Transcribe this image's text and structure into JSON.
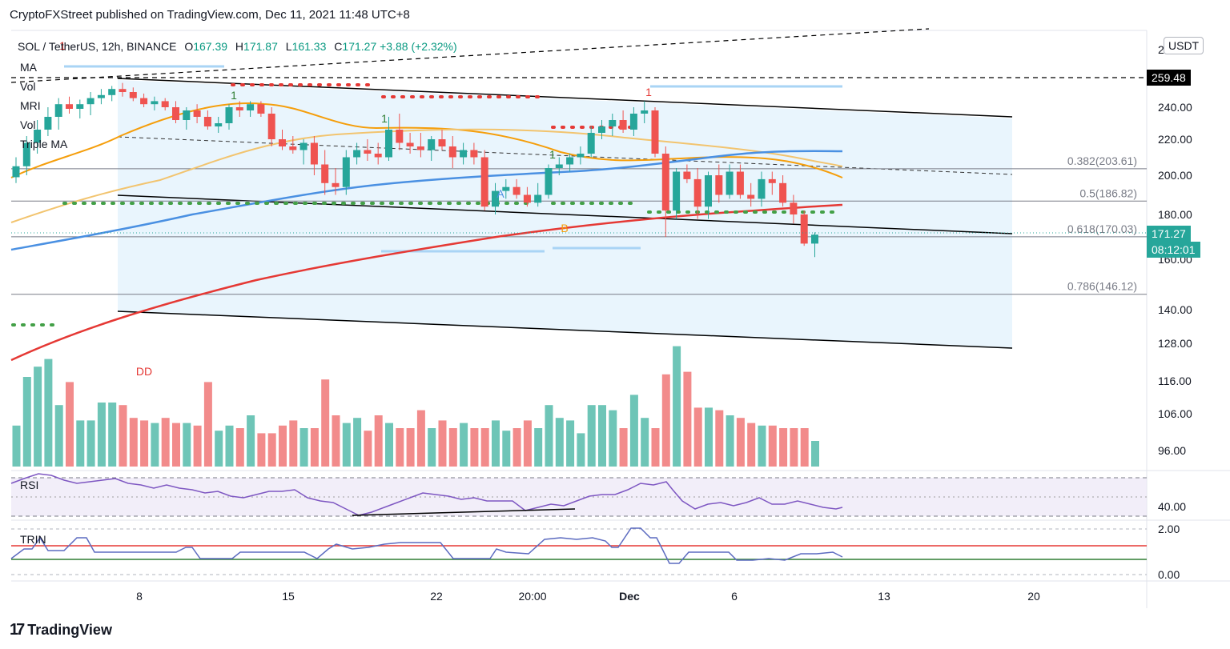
{
  "header": {
    "text": "CryptoFXStreet published on TradingView.com, Dec 11, 2021 11:48 UTC+8"
  },
  "symbol": {
    "name": "SOL / TetherUS, 12h, BINANCE",
    "o_label": "O",
    "o": "167.39",
    "h_label": "H",
    "h": "171.87",
    "l_label": "L",
    "l": "161.33",
    "c_label": "C",
    "c": "171.27",
    "change": "+3.88 (+2.32%)"
  },
  "indicators": [
    "MA",
    "Vol",
    "MRI",
    "Vol",
    "Triple MA"
  ],
  "currency": "USDT",
  "price_tags": {
    "top": "259.48",
    "current": "171.27",
    "countdown": "08:12:01"
  },
  "fib_levels": [
    {
      "label": "0.382(203.61)",
      "value": 203.61
    },
    {
      "label": "0.5(186.82)",
      "value": 186.82
    },
    {
      "label": "0.618(170.03)",
      "value": 170.03
    },
    {
      "label": "0.786(146.12)",
      "value": 146.12
    }
  ],
  "chart_data": {
    "type": "candlestick",
    "title": "SOL / TetherUS, 12h, BINANCE",
    "y_ticks": [
      "240.00",
      "220.00",
      "200.00",
      "180.00",
      "160.00",
      "140.00",
      "128.00",
      "116.00",
      "106.00",
      "96.00"
    ],
    "y_tick_values": [
      240,
      220,
      200,
      180,
      160,
      140,
      128,
      116,
      106,
      96
    ],
    "y_top_label": "2",
    "x_ticks": [
      "8",
      "15",
      "22",
      "20:00",
      "Dec",
      "6",
      "13",
      "20"
    ],
    "rsi": {
      "label": "RSI",
      "tick": "40.00"
    },
    "trin": {
      "label": "TRIN",
      "ticks": [
        "2.00",
        "0.00"
      ]
    },
    "annotations": [
      "1",
      "1",
      "1",
      "1",
      "1",
      "A",
      "B",
      "DD"
    ],
    "candles": [
      [
        199,
        210,
        196,
        205
      ],
      [
        205,
        222,
        200,
        218
      ],
      [
        218,
        232,
        212,
        226
      ],
      [
        226,
        240,
        222,
        234
      ],
      [
        234,
        246,
        226,
        242
      ],
      [
        242,
        247,
        236,
        239
      ],
      [
        239,
        245,
        233,
        242
      ],
      [
        242,
        250,
        235,
        246
      ],
      [
        246,
        252,
        242,
        248
      ],
      [
        248,
        254,
        244,
        252
      ],
      [
        252,
        256,
        247,
        250
      ],
      [
        250,
        253,
        244,
        246
      ],
      [
        246,
        249,
        240,
        242
      ],
      [
        242,
        247,
        238,
        244
      ],
      [
        244,
        246,
        238,
        240
      ],
      [
        240,
        244,
        230,
        232
      ],
      [
        232,
        240,
        226,
        238
      ],
      [
        238,
        242,
        230,
        234
      ],
      [
        234,
        238,
        226,
        228
      ],
      [
        228,
        234,
        224,
        230
      ],
      [
        230,
        242,
        226,
        240
      ],
      [
        240,
        244,
        234,
        238
      ],
      [
        238,
        244,
        234,
        242
      ],
      [
        242,
        244,
        234,
        236
      ],
      [
        236,
        240,
        216,
        220
      ],
      [
        220,
        226,
        214,
        216
      ],
      [
        216,
        222,
        212,
        214
      ],
      [
        214,
        220,
        206,
        218
      ],
      [
        218,
        222,
        200,
        206
      ],
      [
        206,
        214,
        190,
        196
      ],
      [
        196,
        204,
        190,
        194
      ],
      [
        194,
        214,
        190,
        210
      ],
      [
        210,
        218,
        206,
        214
      ],
      [
        214,
        220,
        208,
        212
      ],
      [
        212,
        218,
        206,
        210
      ],
      [
        210,
        234,
        208,
        226
      ],
      [
        226,
        236,
        214,
        218
      ],
      [
        218,
        224,
        212,
        216
      ],
      [
        216,
        224,
        210,
        214
      ],
      [
        214,
        222,
        208,
        220
      ],
      [
        220,
        226,
        214,
        216
      ],
      [
        216,
        222,
        204,
        210
      ],
      [
        210,
        218,
        206,
        214
      ],
      [
        214,
        218,
        206,
        210
      ],
      [
        210,
        214,
        182,
        184
      ],
      [
        184,
        196,
        180,
        192
      ],
      [
        192,
        198,
        188,
        194
      ],
      [
        194,
        198,
        188,
        190
      ],
      [
        190,
        194,
        184,
        186
      ],
      [
        186,
        196,
        184,
        190
      ],
      [
        190,
        206,
        188,
        204
      ],
      [
        204,
        210,
        200,
        206
      ],
      [
        206,
        212,
        202,
        210
      ],
      [
        210,
        216,
        206,
        212
      ],
      [
        212,
        228,
        210,
        224
      ],
      [
        224,
        232,
        220,
        228
      ],
      [
        228,
        236,
        222,
        232
      ],
      [
        232,
        238,
        224,
        226
      ],
      [
        226,
        240,
        222,
        236
      ],
      [
        236,
        244,
        230,
        238
      ],
      [
        238,
        240,
        210,
        212
      ],
      [
        212,
        216,
        170,
        182
      ],
      [
        182,
        204,
        178,
        202
      ],
      [
        202,
        206,
        196,
        198
      ],
      [
        198,
        204,
        178,
        184
      ],
      [
        184,
        202,
        178,
        200
      ],
      [
        200,
        206,
        186,
        190
      ],
      [
        190,
        206,
        188,
        202
      ],
      [
        202,
        206,
        188,
        190
      ],
      [
        190,
        196,
        184,
        188
      ],
      [
        188,
        202,
        184,
        198
      ],
      [
        198,
        202,
        190,
        196
      ],
      [
        196,
        200,
        184,
        186
      ],
      [
        186,
        190,
        176,
        180
      ],
      [
        180,
        182,
        166,
        167
      ],
      [
        167,
        172,
        161,
        171
      ]
    ],
    "volumes": [
      32,
      70,
      78,
      84,
      48,
      66,
      36,
      36,
      50,
      50,
      48,
      38,
      36,
      34,
      38,
      34,
      34,
      32,
      66,
      28,
      32,
      30,
      40,
      26,
      26,
      32,
      36,
      30,
      30,
      68,
      40,
      34,
      38,
      28,
      40,
      34,
      30,
      30,
      44,
      30,
      36,
      30,
      34,
      30,
      30,
      36,
      28,
      30,
      36,
      30,
      48,
      38,
      36,
      26,
      48,
      48,
      44,
      30,
      56,
      38,
      30,
      72,
      94,
      74,
      46,
      46,
      44,
      40,
      38,
      34,
      32,
      32,
      30,
      30,
      30,
      20
    ]
  }
}
